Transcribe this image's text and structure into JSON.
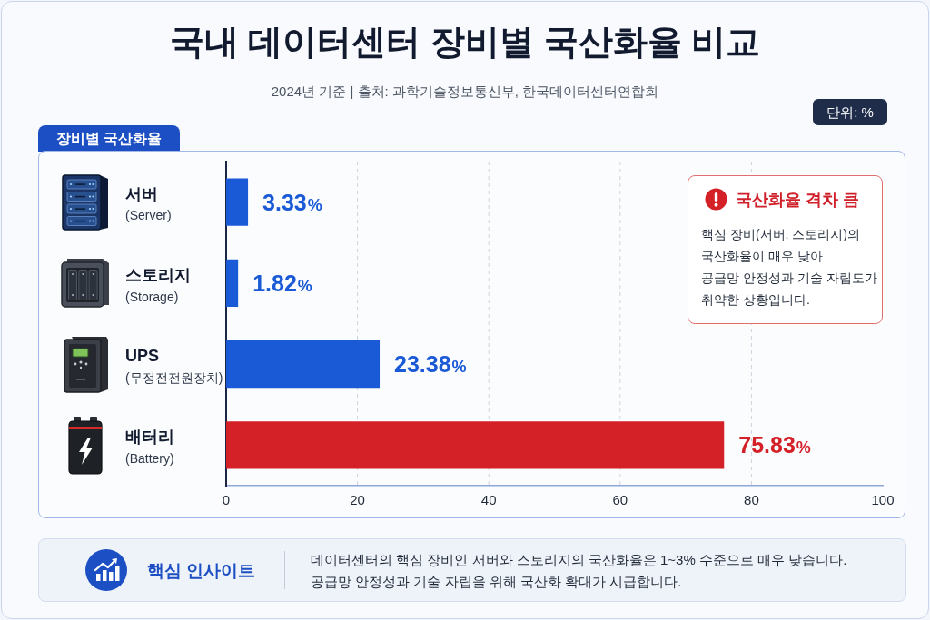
{
  "chart_data": {
    "type": "bar",
    "orientation": "horizontal",
    "title": "국내 데이터센터 장비별 국산화율 비교",
    "subtitle": "2024년 기준 | 출처: 과학기술정보통신부, 한국데이터센터연합회",
    "categories": [
      "서버\n(Server)",
      "스토리지\n(Storage)",
      "UPS\n(무정전전원장치)",
      "배터리\n(Battery)"
    ],
    "values": [
      3.33,
      1.82,
      23.38,
      75.83
    ],
    "colors": [
      "#1a5ad7",
      "#1a5ad7",
      "#1a5ad7",
      "#d42027"
    ],
    "value_labels": [
      "3.33%",
      "1.82%",
      "23.38%",
      "75.83%"
    ],
    "xlim": [
      0,
      100
    ],
    "xticks": [
      0,
      20,
      40,
      60,
      80,
      100
    ],
    "grid": "x",
    "annotations": [
      "단위: %",
      "장비별 국산화율",
      "국산화율 격차 큼",
      "핵심 장비(서버, 스토리지)의\n국산화율이 매우 낮아\n공급망 안정성과 기술 자립도가\n취약한 상황입니다.",
      "핵심 인사이트",
      "데이터센터의 핵심 장비인 서버와 스토리지의 국산화율은 1~3% 수준으로 매우 낮습니다.\n공급망 안정성과 기술 자립을 위해 국산화 확대가 시급합니다."
    ]
  }
}
